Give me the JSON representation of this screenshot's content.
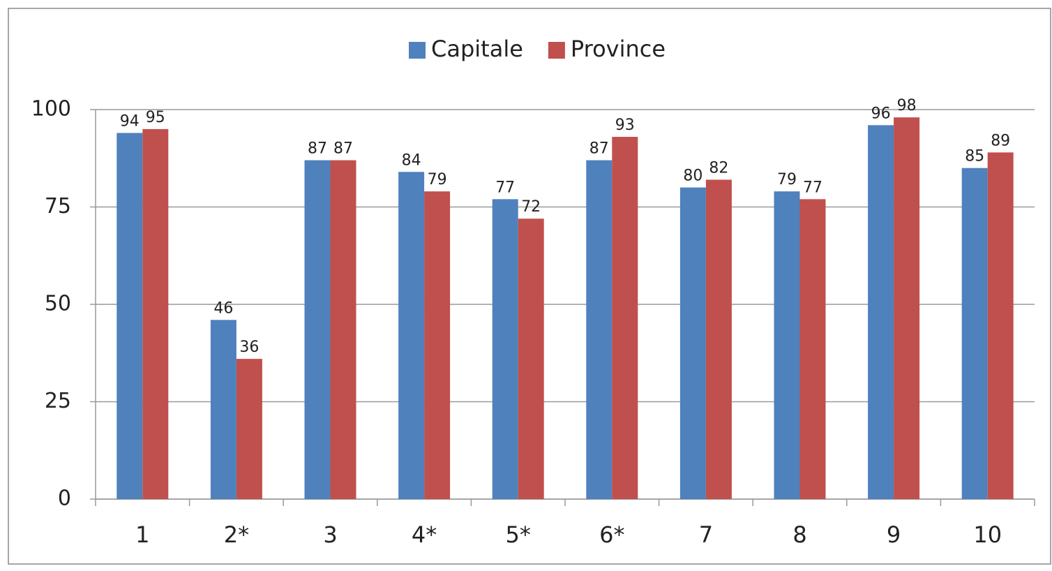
{
  "chart_data": {
    "type": "bar",
    "categories": [
      "1",
      "2*",
      "3",
      "4*",
      "5*",
      "6*",
      "7",
      "8",
      "9",
      "10"
    ],
    "series": [
      {
        "name": "Capitale",
        "color": "#4f81bd",
        "values": [
          94,
          46,
          87,
          84,
          77,
          87,
          80,
          79,
          96,
          85
        ]
      },
      {
        "name": "Province",
        "color": "#c0504d",
        "values": [
          95,
          36,
          87,
          79,
          72,
          93,
          82,
          77,
          98,
          89
        ]
      }
    ],
    "ylim": [
      0,
      100
    ],
    "yticks": [
      0,
      25,
      50,
      75,
      100
    ],
    "grid": true,
    "legend": "top"
  }
}
